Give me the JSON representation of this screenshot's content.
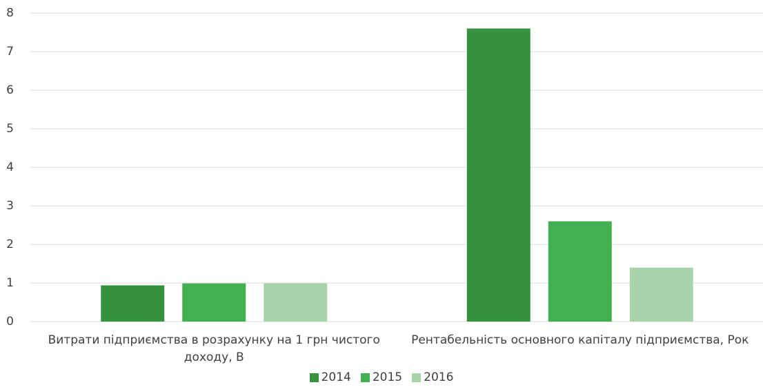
{
  "chart_data": {
    "type": "bar",
    "categories": [
      "Витрати підприємства в розрахунку на 1 грн чистого доходу, В",
      "Рентабельність основного капіталу підприємства, Рок"
    ],
    "series": [
      {
        "name": "2014",
        "color": "#37923f",
        "values": [
          0.94,
          7.6
        ]
      },
      {
        "name": "2015",
        "color": "#43b050",
        "values": [
          0.99,
          2.6
        ]
      },
      {
        "name": "2016",
        "color": "#a9d3a8",
        "values": [
          0.99,
          1.4
        ]
      }
    ],
    "ylim": [
      0,
      8
    ],
    "yticks": [
      0,
      1,
      2,
      3,
      4,
      5,
      6,
      7,
      8
    ],
    "grid": true,
    "legend": "bottom"
  }
}
